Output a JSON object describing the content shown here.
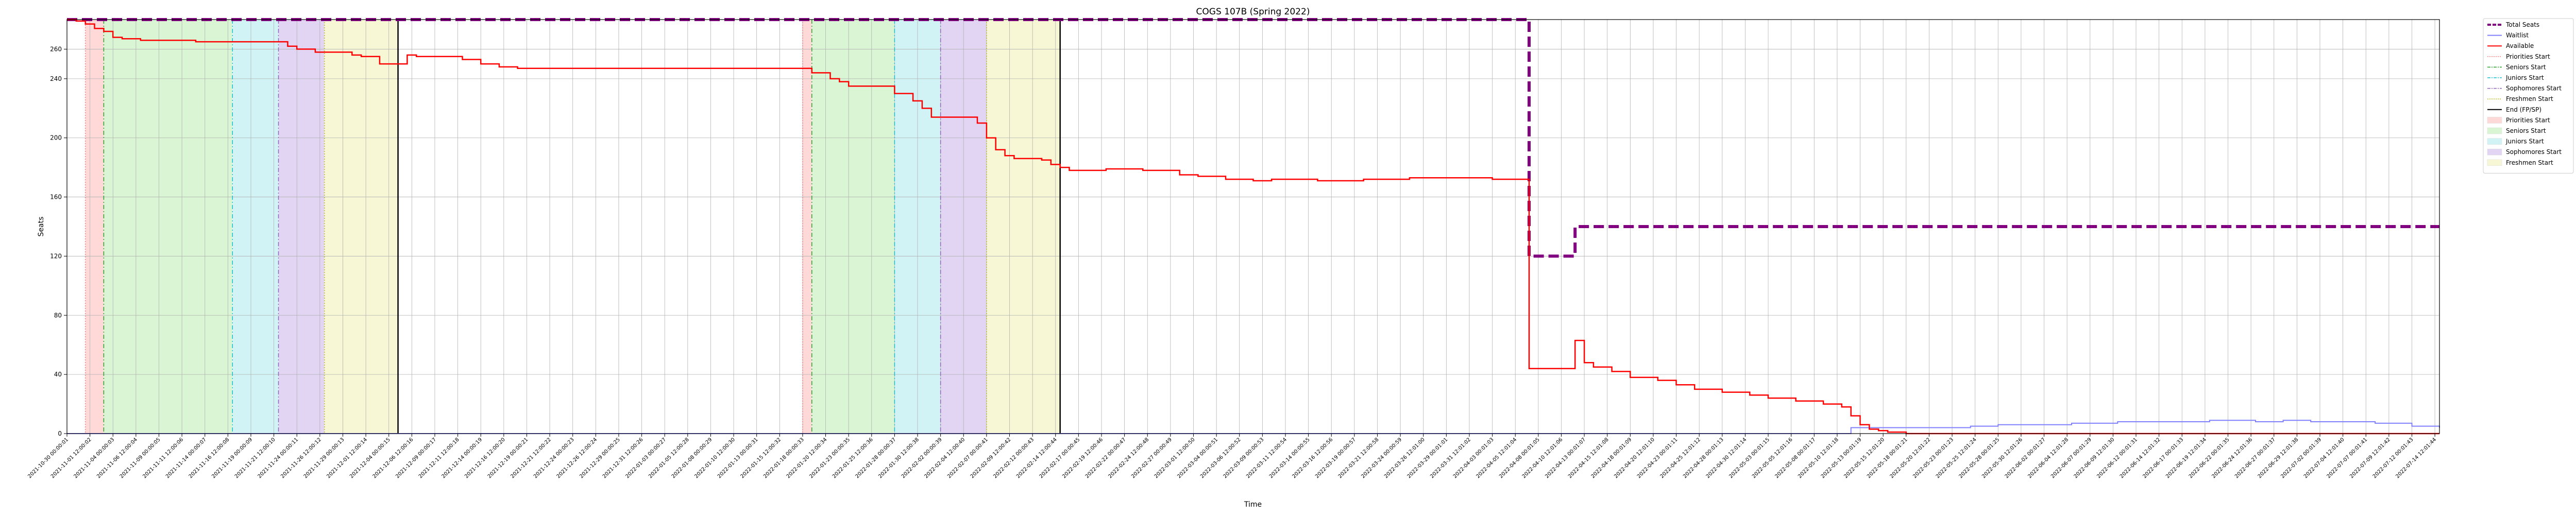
{
  "chart_data": {
    "type": "line",
    "title": "COGS 107B (Spring 2022)",
    "xlabel": "Time",
    "ylabel": "Seats",
    "ylim": [
      0,
      280
    ],
    "yticks": [
      0,
      40,
      80,
      120,
      160,
      200,
      240,
      260
    ],
    "grid": true,
    "legend_placement": "outside-right",
    "colors": {
      "total": "#800080",
      "waitlist": "#8080ff",
      "available": "#ff0000",
      "priorities": "#ff8080",
      "seniors": "#2ca02c",
      "juniors": "#17becf",
      "sophomores": "#9467bd",
      "freshmen": "#bcbd22",
      "end": "#000000"
    },
    "pass1": {
      "priorities": "2021-11-01",
      "seniors": "2021-11-03",
      "juniors": "2021-11-17",
      "sophomores": "2021-11-22",
      "freshmen": "2021-11-27",
      "end": "2021-12-05"
    },
    "pass2": {
      "priorities": "2022-01-18",
      "seniors": "2022-01-19",
      "juniors": "2022-01-28",
      "sophomores": "2022-02-02",
      "freshmen": "2022-02-07",
      "end": "2022-02-15"
    },
    "x_range": [
      "2021-10-30",
      "2022-07-15"
    ],
    "total_seats": {
      "name": "Total Seats",
      "points": [
        [
          "2021-10-30",
          280
        ],
        [
          "2022-04-07",
          280
        ],
        [
          "2022-04-07",
          120
        ],
        [
          "2022-04-12",
          120
        ],
        [
          "2022-04-12",
          140
        ],
        [
          "2022-07-15",
          140
        ]
      ]
    },
    "waitlist": {
      "name": "Waitlist",
      "points": [
        [
          "2021-10-30",
          0
        ],
        [
          "2022-05-10",
          0
        ],
        [
          "2022-05-12",
          4
        ],
        [
          "2022-05-20",
          4
        ],
        [
          "2022-05-25",
          5
        ],
        [
          "2022-05-28",
          6
        ],
        [
          "2022-06-01",
          6
        ],
        [
          "2022-06-05",
          7
        ],
        [
          "2022-06-10",
          8
        ],
        [
          "2022-06-15",
          8
        ],
        [
          "2022-06-20",
          9
        ],
        [
          "2022-06-25",
          8
        ],
        [
          "2022-06-28",
          9
        ],
        [
          "2022-07-01",
          8
        ],
        [
          "2022-07-08",
          7
        ],
        [
          "2022-07-12",
          5
        ],
        [
          "2022-07-15",
          4
        ]
      ]
    },
    "available": {
      "name": "Available",
      "points": [
        [
          "2021-10-30",
          280
        ],
        [
          "2021-10-31",
          279
        ],
        [
          "2021-11-01",
          277
        ],
        [
          "2021-11-02",
          274
        ],
        [
          "2021-11-03",
          272
        ],
        [
          "2021-11-04",
          268
        ],
        [
          "2021-11-05",
          267
        ],
        [
          "2021-11-07",
          266
        ],
        [
          "2021-11-12",
          266
        ],
        [
          "2021-11-13",
          265
        ],
        [
          "2021-11-22",
          265
        ],
        [
          "2021-11-23",
          262
        ],
        [
          "2021-11-24",
          260
        ],
        [
          "2021-11-26",
          258
        ],
        [
          "2021-11-30",
          256
        ],
        [
          "2021-12-01",
          255
        ],
        [
          "2021-12-03",
          250
        ],
        [
          "2021-12-06",
          256
        ],
        [
          "2021-12-07",
          255
        ],
        [
          "2021-12-11",
          255
        ],
        [
          "2021-12-12",
          253
        ],
        [
          "2021-12-14",
          250
        ],
        [
          "2021-12-16",
          248
        ],
        [
          "2021-12-18",
          247
        ],
        [
          "2022-01-18",
          247
        ],
        [
          "2022-01-19",
          244
        ],
        [
          "2022-01-21",
          240
        ],
        [
          "2022-01-22",
          238
        ],
        [
          "2022-01-23",
          235
        ],
        [
          "2022-01-27",
          235
        ],
        [
          "2022-01-28",
          230
        ],
        [
          "2022-01-30",
          225
        ],
        [
          "2022-01-31",
          220
        ],
        [
          "2022-02-01",
          214
        ],
        [
          "2022-02-05",
          214
        ],
        [
          "2022-02-06",
          210
        ],
        [
          "2022-02-07",
          200
        ],
        [
          "2022-02-08",
          192
        ],
        [
          "2022-02-09",
          188
        ],
        [
          "2022-02-10",
          186
        ],
        [
          "2022-02-13",
          185
        ],
        [
          "2022-02-14",
          182
        ],
        [
          "2022-02-15",
          180
        ],
        [
          "2022-02-16",
          178
        ],
        [
          "2022-02-19",
          178
        ],
        [
          "2022-02-20",
          179
        ],
        [
          "2022-02-24",
          178
        ],
        [
          "2022-02-28",
          175
        ],
        [
          "2022-03-02",
          174
        ],
        [
          "2022-03-05",
          172
        ],
        [
          "2022-03-08",
          171
        ],
        [
          "2022-03-10",
          172
        ],
        [
          "2022-03-15",
          171
        ],
        [
          "2022-03-20",
          172
        ],
        [
          "2022-03-25",
          173
        ],
        [
          "2022-03-30",
          173
        ],
        [
          "2022-04-03",
          172
        ],
        [
          "2022-04-07",
          165
        ],
        [
          "2022-04-07",
          44
        ],
        [
          "2022-04-12",
          44
        ],
        [
          "2022-04-12",
          63
        ],
        [
          "2022-04-13",
          48
        ],
        [
          "2022-04-14",
          45
        ],
        [
          "2022-04-16",
          42
        ],
        [
          "2022-04-18",
          38
        ],
        [
          "2022-04-21",
          36
        ],
        [
          "2022-04-23",
          33
        ],
        [
          "2022-04-25",
          30
        ],
        [
          "2022-04-28",
          28
        ],
        [
          "2022-05-01",
          26
        ],
        [
          "2022-05-03",
          24
        ],
        [
          "2022-05-06",
          22
        ],
        [
          "2022-05-09",
          20
        ],
        [
          "2022-05-11",
          18
        ],
        [
          "2022-05-12",
          12
        ],
        [
          "2022-05-13",
          6
        ],
        [
          "2022-05-14",
          3
        ],
        [
          "2022-05-15",
          2
        ],
        [
          "2022-05-16",
          1
        ],
        [
          "2022-05-18",
          0
        ],
        [
          "2022-07-15",
          0
        ]
      ]
    },
    "xticks": [
      "2021-10-30 00:00:01",
      "2021-11-01 12:00:02",
      "2021-11-04 00:00:03",
      "2021-11-06 12:00:04",
      "2021-11-09 00:00:05",
      "2021-11-11 12:00:06",
      "2021-11-14 00:00:07",
      "2021-11-16 12:00:08",
      "2021-11-19 00:00:09",
      "2021-11-21 12:00:10",
      "2021-11-24 00:00:11",
      "2021-11-26 12:00:12",
      "2021-11-29 00:00:13",
      "2021-12-01 12:00:14",
      "2021-12-04 00:00:15",
      "2021-12-06 12:00:16",
      "2021-12-09 00:00:17",
      "2021-12-11 12:00:18",
      "2021-12-14 00:00:19",
      "2021-12-16 12:00:20",
      "2021-12-19 00:00:21",
      "2021-12-21 12:00:22",
      "2021-12-24 00:00:23",
      "2021-12-26 12:00:24",
      "2021-12-29 00:00:25",
      "2021-12-31 12:00:26",
      "2022-01-03 00:00:27",
      "2022-01-05 12:00:28",
      "2022-01-08 00:00:29",
      "2022-01-10 12:00:30",
      "2022-01-13 00:00:31",
      "2022-01-15 12:00:32",
      "2022-01-18 00:00:33",
      "2022-01-20 12:00:34",
      "2022-01-23 00:00:35",
      "2022-01-25 12:00:36",
      "2022-01-28 00:00:37",
      "2022-01-30 12:00:38",
      "2022-02-02 00:00:39",
      "2022-02-04 12:00:40",
      "2022-02-07 00:00:41",
      "2022-02-09 12:00:42",
      "2022-02-12 00:00:43",
      "2022-02-14 12:00:44",
      "2022-02-17 00:00:45",
      "2022-02-19 12:00:46",
      "2022-02-22 00:00:47",
      "2022-02-24 12:00:48",
      "2022-02-27 00:00:49",
      "2022-03-01 12:00:50",
      "2022-03-04 00:00:51",
      "2022-03-06 12:00:52",
      "2022-03-09 00:00:53",
      "2022-03-11 12:00:54",
      "2022-03-14 00:00:55",
      "2022-03-16 12:00:56",
      "2022-03-19 00:00:57",
      "2022-03-21 12:00:58",
      "2022-03-24 00:00:59",
      "2022-03-26 12:01:00",
      "2022-03-29 00:01:01",
      "2022-03-31 12:01:02",
      "2022-04-03 00:01:03",
      "2022-04-05 12:01:04",
      "2022-04-08 00:01:05",
      "2022-04-10 12:01:06",
      "2022-04-13 00:01:07",
      "2022-04-15 12:01:08",
      "2022-04-18 00:01:09",
      "2022-04-20 12:01:10",
      "2022-04-23 00:01:11",
      "2022-04-25 12:01:12",
      "2022-04-28 00:01:13",
      "2022-04-30 12:01:14",
      "2022-05-03 00:01:15",
      "2022-05-05 12:01:16",
      "2022-05-08 00:01:17",
      "2022-05-10 12:01:18",
      "2022-05-13 00:01:19",
      "2022-05-15 12:01:20",
      "2022-05-18 00:01:21",
      "2022-05-20 12:01:22",
      "2022-05-23 00:01:23",
      "2022-05-25 12:01:24",
      "2022-05-28 00:01:25",
      "2022-05-30 12:01:26",
      "2022-06-02 00:01:27",
      "2022-06-04 12:01:28",
      "2022-06-07 00:01:29",
      "2022-06-09 12:01:30",
      "2022-06-12 00:01:31",
      "2022-06-14 12:01:32",
      "2022-06-17 00:01:33",
      "2022-06-19 12:01:34",
      "2022-06-22 00:01:35",
      "2022-06-24 12:01:36",
      "2022-06-27 00:01:37",
      "2022-06-29 12:01:38",
      "2022-07-02 00:01:39",
      "2022-07-04 12:01:40",
      "2022-07-07 00:01:41",
      "2022-07-09 12:01:42",
      "2022-07-12 00:01:43",
      "2022-07-14 12:01:44"
    ],
    "legend": [
      {
        "label": "Total Seats",
        "kind": "line",
        "color": "#800080",
        "dash": "dashed",
        "width": 4
      },
      {
        "label": "Waitlist",
        "kind": "line",
        "color": "#8080ff",
        "dash": "solid",
        "width": 2
      },
      {
        "label": "Available",
        "kind": "line",
        "color": "#ff0000",
        "dash": "solid",
        "width": 2
      },
      {
        "label": "Priorities Start",
        "kind": "line",
        "color": "#ff8080",
        "dash": "dotted",
        "width": 1.5
      },
      {
        "label": "Seniors Start",
        "kind": "line",
        "color": "#2ca02c",
        "dash": "dashdot",
        "width": 1.5
      },
      {
        "label": "Juniors Start",
        "kind": "line",
        "color": "#17becf",
        "dash": "dashdot",
        "width": 1.5
      },
      {
        "label": "Sophomores Start",
        "kind": "line",
        "color": "#9467bd",
        "dash": "dashdot",
        "width": 1.5
      },
      {
        "label": "Freshmen Start",
        "kind": "line",
        "color": "#bcbd22",
        "dash": "dotted",
        "width": 1.5
      },
      {
        "label": "End (FP/SP)",
        "kind": "line",
        "color": "#000000",
        "dash": "solid",
        "width": 2
      },
      {
        "label": "Priorities Start",
        "kind": "patch",
        "color": "#ffd8d8"
      },
      {
        "label": "Seniors Start",
        "kind": "patch",
        "color": "#d9f5d3"
      },
      {
        "label": "Juniors Start",
        "kind": "patch",
        "color": "#d1f3f5"
      },
      {
        "label": "Sophomores Start",
        "kind": "patch",
        "color": "#e1d5f3"
      },
      {
        "label": "Freshmen Start",
        "kind": "patch",
        "color": "#f7f7d6"
      }
    ]
  }
}
